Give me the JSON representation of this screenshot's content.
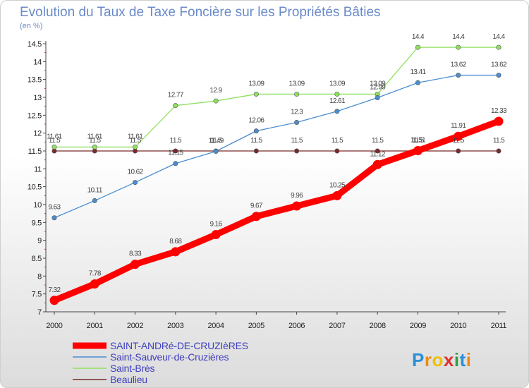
{
  "chart_data": {
    "type": "line",
    "title": "Evolution du Taux de Taxe Foncière sur les Propriétés Bâties",
    "subtitle": "(en %)",
    "x": [
      "2000",
      "2001",
      "2002",
      "2003",
      "2004",
      "2005",
      "2006",
      "2007",
      "2008",
      "2009",
      "2010",
      "2011"
    ],
    "ylim": [
      7,
      14.5
    ],
    "y_ticks": [
      "7",
      "7.5",
      "8",
      "8.5",
      "9",
      "9.5",
      "10",
      "10.5",
      "11",
      "11.5",
      "12",
      "12.5",
      "13",
      "13.5",
      "14",
      "14.5"
    ],
    "grid": false,
    "legend_placement": "bottom-left",
    "series": [
      {
        "name": "SAINT-ANDRé-DE-CRUZIèRES",
        "color": "#ff0000",
        "values": [
          7.32,
          7.78,
          8.33,
          8.68,
          9.16,
          9.67,
          9.96,
          10.25,
          11.12,
          11.51,
          11.91,
          12.33
        ],
        "labels": [
          "7.32",
          "7.78",
          "8.33",
          "8.68",
          "9.16",
          "9.67",
          "9.96",
          "10.25",
          "11.12",
          "11.51",
          "11.91",
          "12.33"
        ]
      },
      {
        "name": "Saint-Sauveur-de-Cruzières",
        "color": "#4a8ed0",
        "values": [
          9.63,
          10.11,
          10.62,
          11.15,
          11.49,
          12.06,
          12.3,
          12.61,
          12.99,
          13.41,
          13.62,
          13.62
        ],
        "labels": [
          "9.63",
          "10.11",
          "10.62",
          "11.15",
          "11.49",
          "12.06",
          "12.3",
          "12.61",
          "12.99",
          "13.41",
          "13.62",
          "13.62"
        ]
      },
      {
        "name": "Saint-Brès",
        "color": "#90e060",
        "values": [
          11.61,
          11.61,
          11.61,
          12.77,
          12.9,
          13.09,
          13.09,
          13.09,
          13.09,
          14.4,
          14.4,
          14.4
        ],
        "labels": [
          "11.61",
          "11.61",
          "11.61",
          "12.77",
          "12.9",
          "13.09",
          "13.09",
          "13.09",
          "13.09",
          "14.4",
          "14.4",
          "14.4"
        ]
      },
      {
        "name": "Beaulieu",
        "color": "#7a2a2a",
        "values": [
          11.5,
          11.5,
          11.5,
          11.5,
          11.5,
          11.5,
          11.5,
          11.5,
          11.5,
          11.5,
          11.5,
          11.5
        ],
        "labels": [
          "11.5",
          "11.5",
          "11.5",
          "11.5",
          "11.5",
          "11.5",
          "11.5",
          "11.5",
          "11.5",
          "11.5",
          "11.5",
          "11.5"
        ]
      }
    ]
  },
  "logo": {
    "text": "Proxiti",
    "letters": [
      {
        "ch": "P",
        "color": "#2a8fd8"
      },
      {
        "ch": "r",
        "color": "#f08a10"
      },
      {
        "ch": "o",
        "color": "#f0c000"
      },
      {
        "ch": "x",
        "color": "#e03030"
      },
      {
        "ch": "i",
        "color": "#30a040"
      },
      {
        "ch": "t",
        "color": "#2a8fd8"
      },
      {
        "ch": "i",
        "color": "#f08a10"
      }
    ]
  }
}
